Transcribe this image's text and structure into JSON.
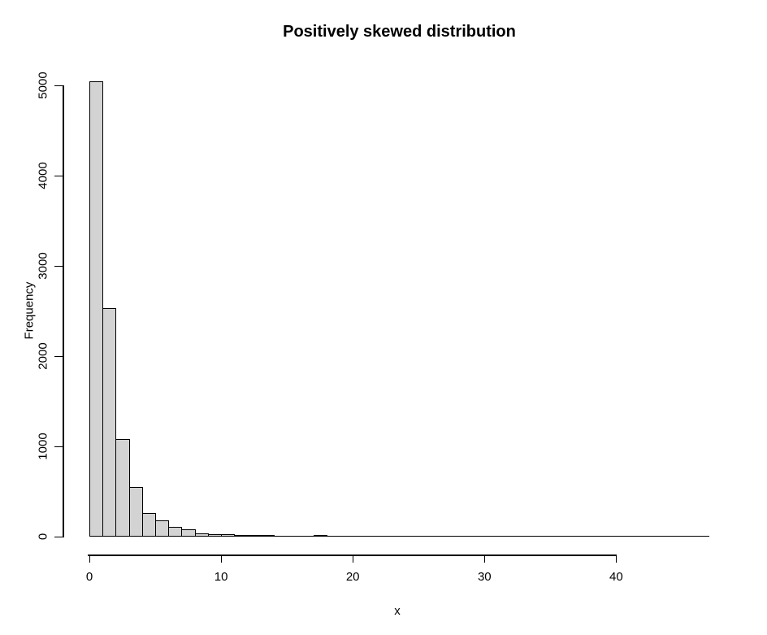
{
  "figure": {
    "background": "#ffffff",
    "text_color": "#000000"
  },
  "chart_data": {
    "type": "bar",
    "subtype": "histogram",
    "title": "Positively skewed distribution",
    "xlabel": "x",
    "ylabel": "Frequency",
    "bin_start": 0,
    "bin_width": 1,
    "counts": [
      5050,
      2530,
      1080,
      550,
      265,
      180,
      105,
      78,
      34,
      30,
      30,
      18,
      8,
      7,
      0,
      0,
      0,
      5
    ],
    "x_ticks": [
      0,
      10,
      20,
      30,
      40
    ],
    "y_ticks": [
      0,
      1000,
      2000,
      3000,
      4000,
      5000
    ],
    "xlim": [
      0,
      47.1
    ],
    "ylim": [
      0,
      5000
    ],
    "baseline_extent": 47.1,
    "bar_fill": "#d3d3d3",
    "bar_border": "#000000",
    "axis_color": "#000000",
    "grid": false,
    "legend": false
  }
}
